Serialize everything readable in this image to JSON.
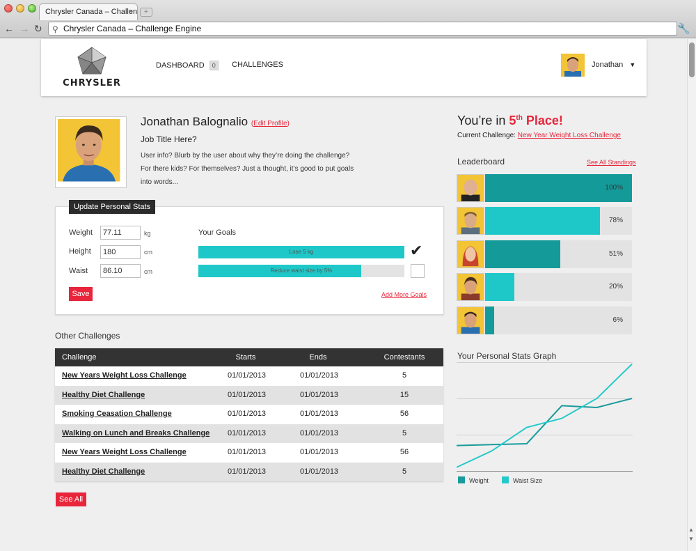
{
  "browser": {
    "tab_title": "Chrysler Canada – Challenge Engine",
    "tab_close": "×",
    "new_tab": "+",
    "address": "Chrysler Canada – Challenge Engine"
  },
  "header": {
    "logo_text": "CHRYSLER",
    "nav": [
      {
        "label": "DASHBOARD",
        "badge": "0"
      },
      {
        "label": "CHALLENGES"
      }
    ],
    "user_name": "Jonathan",
    "user_caret": "▼"
  },
  "profile": {
    "name": "Jonathan Balognalio",
    "edit_open": "(",
    "edit_label": "Edit Profile",
    "edit_close": ")",
    "job_title": "Job Title Here?",
    "blurb": "User info? Blurb by the user about why they’re doing the challenge? For there kids? For themselves? Just a thought, it’s good to put goals into words..."
  },
  "stats": {
    "title": "Update Personal Stats",
    "fields": [
      {
        "label": "Weight",
        "value": "77.11",
        "unit": "kg"
      },
      {
        "label": "Height",
        "value": "180",
        "unit": "cm"
      },
      {
        "label": "Waist",
        "value": "86.10",
        "unit": "cm"
      }
    ],
    "save_label": "Save",
    "goals_title": "Your Goals",
    "goals": [
      {
        "label": "Lose 5 kg",
        "progress": 1.0,
        "done": true
      },
      {
        "label": "Reduce waist size by 5%",
        "progress": 0.79,
        "done": false
      }
    ],
    "add_goals": "Add More Goals"
  },
  "challenges": {
    "title": "Other Challenges",
    "columns": [
      "Challenge",
      "Starts",
      "Ends",
      "Contestants"
    ],
    "rows": [
      [
        "New Years Weight Loss Challenge",
        "01/01/2013",
        "01/01/2013",
        "5"
      ],
      [
        "Healthy Diet Challenge",
        "01/01/2013",
        "01/01/2013",
        "15"
      ],
      [
        "Smoking Ceasation Challenge",
        "01/01/2013",
        "01/01/2013",
        "56"
      ],
      [
        "Walking on Lunch and Breaks Challenge",
        "01/01/2013",
        "01/01/2013",
        "5"
      ],
      [
        "New Years Weight Loss Challenge",
        "01/01/2013",
        "01/01/2013",
        "56"
      ],
      [
        "Healthy Diet Challenge",
        "01/01/2013",
        "01/01/2013",
        "5"
      ]
    ],
    "see_all": "See All"
  },
  "standing": {
    "prefix": "You’re in ",
    "place_number": "5",
    "place_suffix": "th",
    "place_word": " Place!",
    "current_label": "Current Challenge: ",
    "current_link": "New Year Weight Loss Challenge"
  },
  "leaderboard": {
    "title": "Leaderboard",
    "see_all": "See All Standings",
    "entries": [
      {
        "pct": "100%",
        "value": 1.0,
        "color": "#159a9a"
      },
      {
        "pct": "78%",
        "value": 0.78,
        "color": "#1ec8c8"
      },
      {
        "pct": "51%",
        "value": 0.51,
        "color": "#159a9a"
      },
      {
        "pct": "20%",
        "value": 0.2,
        "color": "#1ec8c8"
      },
      {
        "pct": "6%",
        "value": 0.06,
        "color": "#159a9a"
      }
    ]
  },
  "graph": {
    "title": "Your Personal Stats Graph",
    "legend": [
      {
        "name": "Weight",
        "color": "#1a9b9b"
      },
      {
        "name": "Waist Size",
        "color": "#26c9c9"
      }
    ]
  },
  "chart_data": {
    "type": "line",
    "title": "Your Personal Stats Graph",
    "x": [
      0,
      1,
      2,
      3,
      4,
      5
    ],
    "series": [
      {
        "name": "Weight",
        "values": [
          28,
          29,
          30,
          72,
          70,
          80
        ]
      },
      {
        "name": "Waist Size",
        "values": [
          4,
          22,
          48,
          58,
          80,
          118
        ]
      }
    ],
    "ylim": [
      0,
      120
    ],
    "grid": true
  },
  "colors": {
    "accent_red": "#e8253a",
    "teal_dark": "#159a9a",
    "teal_light": "#1ec8c8"
  }
}
